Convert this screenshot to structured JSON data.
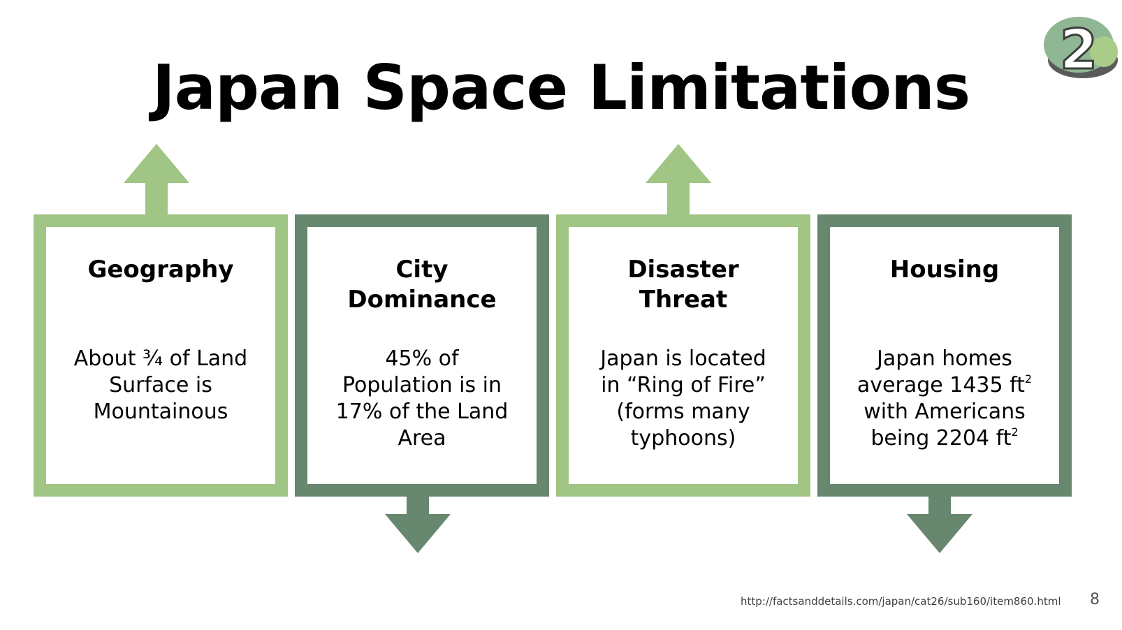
{
  "title": "Japan Space Limitations",
  "logo": {
    "number": "2"
  },
  "cards": [
    {
      "heading": "Geography",
      "body_lines": [
        "About ¾ of Land",
        "Surface is",
        "Mountainous"
      ],
      "arrow": "up",
      "color": "#a0c584"
    },
    {
      "heading_lines": [
        "City",
        "Dominance"
      ],
      "body_lines": [
        "45% of",
        "Population is in",
        "17% of the Land",
        "Area"
      ],
      "arrow": "down",
      "color": "#67876f"
    },
    {
      "heading_lines": [
        "Disaster",
        "Threat"
      ],
      "body_lines": [
        "Japan is located",
        "in “Ring of Fire”",
        "(forms many",
        "typhoons)"
      ],
      "arrow": "up",
      "color": "#a0c584"
    },
    {
      "heading": "Housing",
      "body": {
        "line1": "Japan homes",
        "line2_text": "average 1435 ft",
        "line2_sup": "2",
        "line3": "with Americans",
        "line4_text": "being 2204 ft",
        "line4_sup": "2"
      },
      "arrow": "down",
      "color": "#67876f"
    }
  ],
  "footer": {
    "source_url": "http://factsanddetails.com/japan/cat26/sub160/item860.html",
    "page_number": "8"
  },
  "colors": {
    "light_green": "#a0c584",
    "dark_green": "#67876f",
    "logo_gray": "#5a5a5a"
  }
}
